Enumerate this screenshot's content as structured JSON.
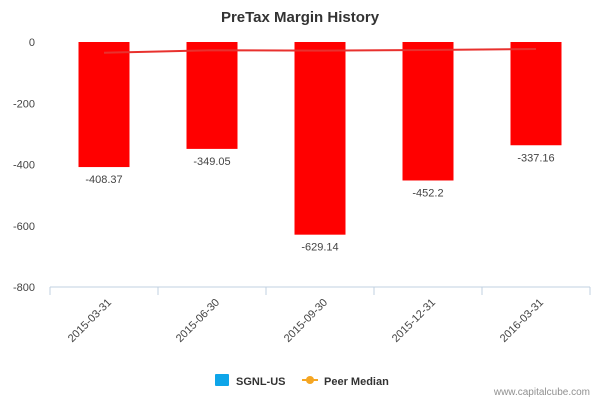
{
  "chart_data": {
    "type": "bar",
    "title": "PreTax Margin History",
    "categories": [
      "2015-03-31",
      "2015-06-30",
      "2015-09-30",
      "2015-12-31",
      "2016-03-31"
    ],
    "series": [
      {
        "name": "SGNL-US",
        "values": [
          -408.37,
          -349.05,
          -629.14,
          -452.2,
          -337.16
        ],
        "labels": [
          "-408.37",
          "-349.05",
          "-629.14",
          "-452.2",
          "-337.16"
        ],
        "color": "#ff0000"
      },
      {
        "name": "Peer Median",
        "values": [
          -35,
          -27,
          -28,
          -26,
          -23
        ],
        "color": "#e8312e"
      }
    ],
    "yticks": [
      0,
      -200,
      -400,
      -600,
      -800
    ],
    "ylim": [
      -800,
      0
    ],
    "grid": false,
    "legend_position": "bottom",
    "legend_colors": {
      "SGNL-US": "#0ea5e9",
      "Peer Median": "#f5a623"
    }
  },
  "credit": "www.capitalcube.com"
}
